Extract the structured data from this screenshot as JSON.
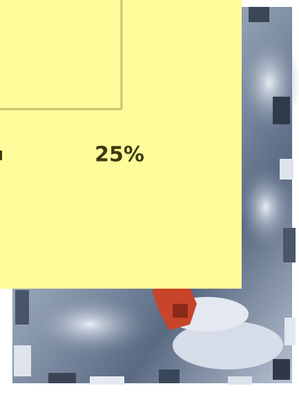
{
  "panel": {
    "label": "25%"
  }
}
